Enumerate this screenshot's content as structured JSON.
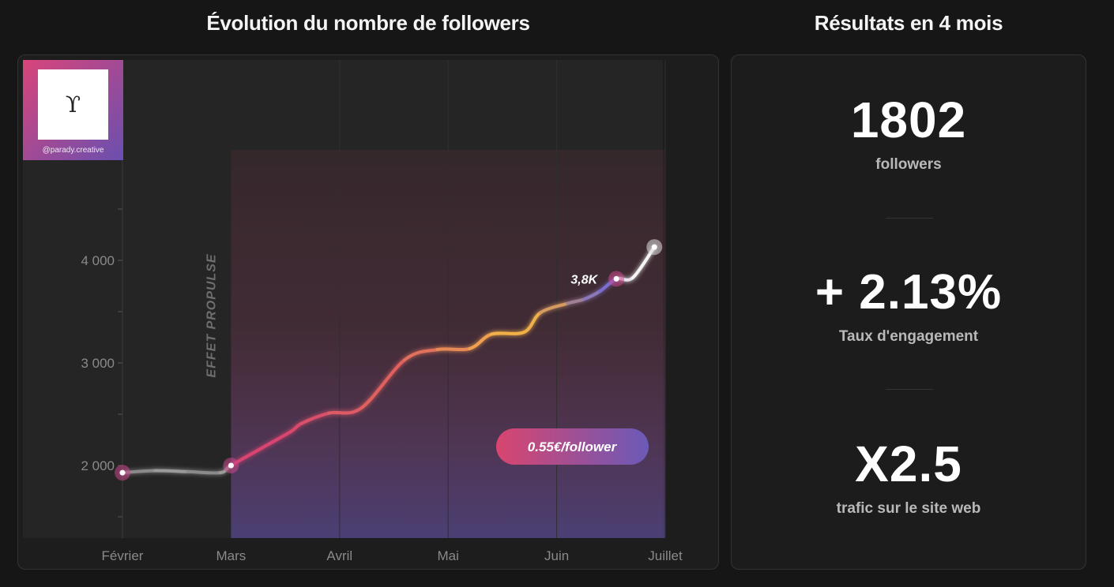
{
  "chart_title": "Évolution du nombre de followers",
  "results_title": "Résultats en 4 mois",
  "brand": {
    "logo_glyph": "ϒ",
    "handle": "@parady.creative"
  },
  "chart_data": {
    "type": "line",
    "title": "Évolution du nombre de followers",
    "x_labels": [
      "Février",
      "Mars",
      "Avril",
      "Mai",
      "Juin",
      "Juillet"
    ],
    "y_ticks": [
      {
        "value": 2000,
        "label": "2 000"
      },
      {
        "value": 3000,
        "label": "3 000"
      },
      {
        "value": 4000,
        "label": "4 000"
      }
    ],
    "xlim": [
      0,
      5.2
    ],
    "ylim": [
      1000,
      5000
    ],
    "series": [
      {
        "x": [
          0,
          0.3,
          0.6,
          0.9,
          1.0,
          1.3,
          1.55,
          1.65,
          1.9,
          2.2,
          2.6,
          2.9,
          3.2,
          3.4,
          3.7,
          3.85,
          4.1,
          4.25,
          4.4,
          4.55,
          4.7,
          4.9
        ],
        "y": [
          1930,
          1950,
          1940,
          1930,
          2000,
          2180,
          2330,
          2410,
          2510,
          2560,
          3030,
          3130,
          3140,
          3280,
          3300,
          3490,
          3580,
          3620,
          3700,
          3820,
          3830,
          4130
        ],
        "colors": [
          "#8a8a8a",
          "#9a9a9a",
          "#8a8a8a",
          "#9a9a9a",
          "#d9456f",
          "#d9456f",
          "#d94a6b",
          "#da5069",
          "#dd5a66",
          "#e0605f",
          "#e0715c",
          "#e88a58",
          "#f0a050",
          "#f2b048",
          "#f0b04a",
          "#d49a60",
          "#a08094",
          "#8a78b8",
          "#7b6ed0",
          "#e8e4ef",
          "#f4f4f4",
          "#ffffff"
        ]
      }
    ],
    "marked_points": [
      {
        "x": 0,
        "y": 1930,
        "color": "#c8478a"
      },
      {
        "x": 1.0,
        "y": 2000,
        "color": "#c8478a"
      },
      {
        "x": 4.55,
        "y": 3820,
        "color": "#c8478a"
      },
      {
        "x": 4.9,
        "y": 4130,
        "color": "#dddddd"
      }
    ],
    "annotations": [
      {
        "text": "EFFET PROPULSE"
      },
      {
        "text": "3,8K"
      },
      {
        "text": "0.55€/follower"
      }
    ],
    "gradient_stops": [
      "#d9456f",
      "#e8a24f",
      "#7b6ed0"
    ]
  },
  "stats": [
    {
      "value": "1802",
      "label": "followers"
    },
    {
      "value": "+ 2.13%",
      "label": "Taux d'engagement"
    },
    {
      "value": "X2.5",
      "label": "trafic sur le site web"
    }
  ]
}
